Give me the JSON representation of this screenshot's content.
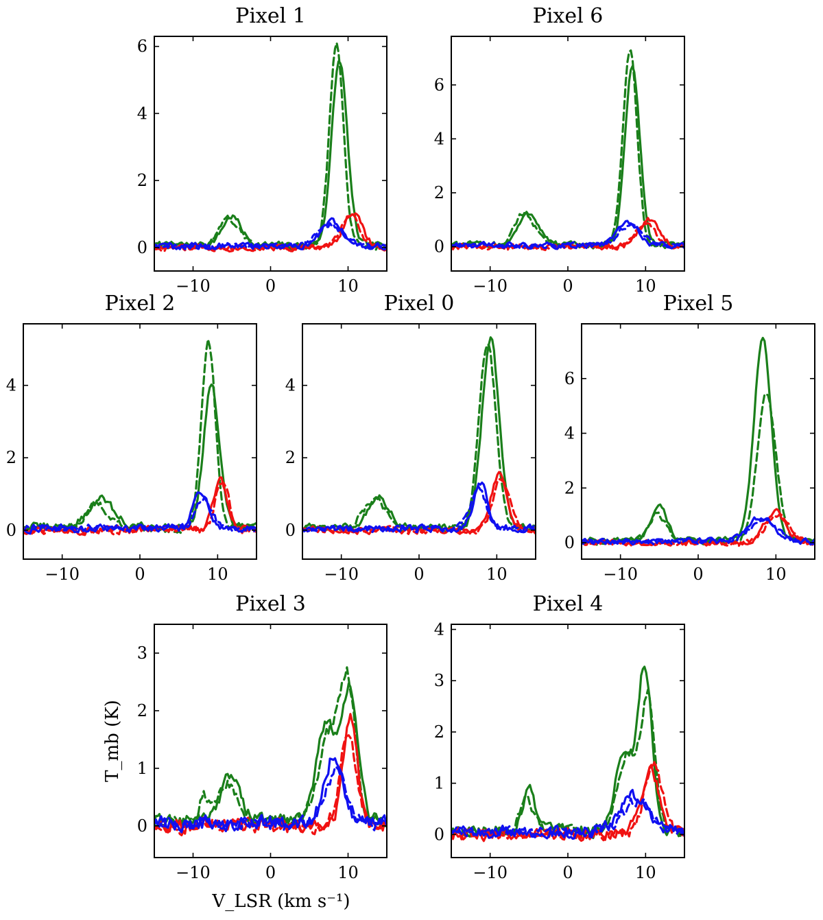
{
  "figure": {
    "xlabel": "V_LSR (km s⁻¹)",
    "ylabel": "T_mb (K)"
  },
  "colors": {
    "green": "#1a7f1a",
    "red": "#f01212",
    "blue": "#1010f0"
  },
  "chart_data": [
    {
      "type": "line",
      "title": "Pixel 1",
      "xlim": [
        -15,
        15
      ],
      "ylim": [
        -0.7,
        6.3
      ],
      "xticks": [
        -10,
        0,
        10
      ],
      "yticks": [
        0,
        2,
        4,
        6
      ],
      "series": [
        {
          "name": "green solid",
          "color": "green",
          "style": "solid",
          "base": 0.08,
          "peaks": [
            [
              -5.0,
              0.85,
              1.2
            ],
            [
              8.9,
              5.5,
              1.0
            ]
          ],
          "noise": 0.09
        },
        {
          "name": "green dashed",
          "color": "green",
          "style": "dashed",
          "base": 0.05,
          "peaks": [
            [
              -5.3,
              0.8,
              1.3
            ],
            [
              8.5,
              6.0,
              0.9
            ]
          ],
          "noise": 0.09
        },
        {
          "name": "red solid",
          "color": "red",
          "style": "solid",
          "base": 0.0,
          "peaks": [
            [
              10.6,
              1.05,
              1.2
            ]
          ],
          "noise": 0.09
        },
        {
          "name": "red dashed",
          "color": "red",
          "style": "dashed",
          "base": 0.0,
          "peaks": [
            [
              10.3,
              0.95,
              1.2
            ]
          ],
          "noise": 0.09
        },
        {
          "name": "blue solid",
          "color": "blue",
          "style": "solid",
          "base": 0.05,
          "peaks": [
            [
              8.0,
              0.72,
              1.4
            ]
          ],
          "noise": 0.09
        },
        {
          "name": "blue dashed",
          "color": "blue",
          "style": "dashed",
          "base": 0.05,
          "peaks": [
            [
              7.6,
              0.65,
              1.5
            ]
          ],
          "noise": 0.09
        }
      ]
    },
    {
      "type": "line",
      "title": "Pixel 6",
      "xlim": [
        -15,
        15
      ],
      "ylim": [
        -0.9,
        7.8
      ],
      "xticks": [
        -10,
        0,
        10
      ],
      "yticks": [
        0,
        2,
        4,
        6
      ],
      "series": [
        {
          "name": "green solid",
          "color": "green",
          "style": "solid",
          "base": 0.08,
          "peaks": [
            [
              -5.0,
              1.15,
              1.3
            ],
            [
              8.3,
              6.6,
              0.95
            ]
          ],
          "noise": 0.1
        },
        {
          "name": "green dashed",
          "color": "green",
          "style": "dashed",
          "base": 0.05,
          "peaks": [
            [
              -5.6,
              1.2,
              1.3
            ],
            [
              8.0,
              7.3,
              0.9
            ]
          ],
          "noise": 0.1
        },
        {
          "name": "red solid",
          "color": "red",
          "style": "solid",
          "base": 0.0,
          "peaks": [
            [
              10.4,
              1.0,
              1.3
            ]
          ],
          "noise": 0.1
        },
        {
          "name": "red dashed",
          "color": "red",
          "style": "dashed",
          "base": 0.0,
          "peaks": [
            [
              10.0,
              0.9,
              1.3
            ]
          ],
          "noise": 0.1
        },
        {
          "name": "blue solid",
          "color": "blue",
          "style": "solid",
          "base": 0.05,
          "peaks": [
            [
              7.7,
              0.9,
              1.3
            ]
          ],
          "noise": 0.1
        },
        {
          "name": "blue dashed",
          "color": "blue",
          "style": "dashed",
          "base": 0.05,
          "peaks": [
            [
              8.1,
              0.8,
              1.5
            ]
          ],
          "noise": 0.1
        }
      ]
    },
    {
      "type": "line",
      "title": "Pixel 2",
      "xlim": [
        -15,
        15
      ],
      "ylim": [
        -0.8,
        5.7
      ],
      "xticks": [
        -10,
        0,
        10
      ],
      "yticks": [
        0,
        2,
        4
      ],
      "series": [
        {
          "name": "green solid",
          "color": "green",
          "style": "solid",
          "base": 0.1,
          "peaks": [
            [
              -5.0,
              0.75,
              1.6
            ],
            [
              9.2,
              3.9,
              1.0
            ]
          ],
          "noise": 0.1
        },
        {
          "name": "green dashed",
          "color": "green",
          "style": "dashed",
          "base": 0.05,
          "peaks": [
            [
              -5.5,
              0.65,
              1.5
            ],
            [
              8.8,
              5.2,
              0.9
            ]
          ],
          "noise": 0.1
        },
        {
          "name": "red solid",
          "color": "red",
          "style": "solid",
          "base": 0.0,
          "peaks": [
            [
              10.3,
              1.4,
              0.9
            ]
          ],
          "noise": 0.1
        },
        {
          "name": "red dashed",
          "color": "red",
          "style": "dashed",
          "base": 0.0,
          "peaks": [
            [
              10.6,
              1.3,
              0.9
            ]
          ],
          "noise": 0.1
        },
        {
          "name": "blue solid",
          "color": "blue",
          "style": "solid",
          "base": 0.05,
          "peaks": [
            [
              7.8,
              1.05,
              0.9
            ]
          ],
          "noise": 0.1
        },
        {
          "name": "blue dashed",
          "color": "blue",
          "style": "dashed",
          "base": 0.05,
          "peaks": [
            [
              8.2,
              0.85,
              1.0
            ]
          ],
          "noise": 0.1
        }
      ]
    },
    {
      "type": "line",
      "title": "Pixel 0",
      "xlim": [
        -15,
        15
      ],
      "ylim": [
        -0.8,
        5.7
      ],
      "xticks": [
        -10,
        0,
        10
      ],
      "yticks": [
        0,
        2,
        4
      ],
      "series": [
        {
          "name": "green solid",
          "color": "green",
          "style": "solid",
          "base": 0.08,
          "peaks": [
            [
              -5.2,
              0.85,
              1.3
            ],
            [
              9.2,
              5.2,
              1.1
            ]
          ],
          "noise": 0.09
        },
        {
          "name": "green dashed",
          "color": "green",
          "style": "dashed",
          "base": 0.05,
          "peaks": [
            [
              -5.8,
              0.8,
              1.4
            ],
            [
              8.8,
              5.1,
              1.1
            ]
          ],
          "noise": 0.09
        },
        {
          "name": "red solid",
          "color": "red",
          "style": "solid",
          "base": 0.0,
          "peaks": [
            [
              10.3,
              1.55,
              1.0
            ]
          ],
          "noise": 0.09
        },
        {
          "name": "red dashed",
          "color": "red",
          "style": "dashed",
          "base": 0.0,
          "peaks": [
            [
              10.6,
              1.45,
              1.0
            ]
          ],
          "noise": 0.09
        },
        {
          "name": "blue solid",
          "color": "blue",
          "style": "solid",
          "base": 0.05,
          "peaks": [
            [
              7.9,
              1.25,
              0.9
            ]
          ],
          "noise": 0.09
        },
        {
          "name": "blue dashed",
          "color": "blue",
          "style": "dashed",
          "base": 0.05,
          "peaks": [
            [
              7.6,
              1.1,
              1.0
            ]
          ],
          "noise": 0.09
        }
      ]
    },
    {
      "type": "line",
      "title": "Pixel 5",
      "xlim": [
        -15,
        15
      ],
      "ylim": [
        -0.6,
        8.0
      ],
      "xticks": [
        -10,
        0,
        10
      ],
      "yticks": [
        0,
        2,
        4,
        6
      ],
      "series": [
        {
          "name": "green solid",
          "color": "green",
          "style": "solid",
          "base": 0.1,
          "peaks": [
            [
              -5.0,
              1.2,
              1.0
            ],
            [
              8.3,
              7.4,
              1.1
            ]
          ],
          "noise": 0.1
        },
        {
          "name": "green dashed",
          "color": "green",
          "style": "dashed",
          "base": 0.05,
          "peaks": [
            [
              -5.3,
              1.0,
              1.1
            ],
            [
              8.8,
              5.4,
              1.2
            ]
          ],
          "noise": 0.1
        },
        {
          "name": "red solid",
          "color": "red",
          "style": "solid",
          "base": 0.0,
          "peaks": [
            [
              9.9,
              1.15,
              1.4
            ]
          ],
          "noise": 0.1
        },
        {
          "name": "red dashed",
          "color": "red",
          "style": "dashed",
          "base": 0.0,
          "peaks": [
            [
              10.2,
              1.05,
              1.4
            ]
          ],
          "noise": 0.1
        },
        {
          "name": "blue solid",
          "color": "blue",
          "style": "solid",
          "base": 0.05,
          "peaks": [
            [
              8.0,
              0.85,
              1.8
            ]
          ],
          "noise": 0.1
        },
        {
          "name": "blue dashed",
          "color": "blue",
          "style": "dashed",
          "base": 0.05,
          "peaks": [
            [
              8.4,
              0.75,
              1.8
            ]
          ],
          "noise": 0.1
        }
      ]
    },
    {
      "type": "line",
      "title": "Pixel 3",
      "xlim": [
        -15,
        15
      ],
      "ylim": [
        -0.55,
        3.5
      ],
      "xticks": [
        -10,
        0,
        10
      ],
      "yticks": [
        0,
        1,
        2,
        3
      ],
      "series": [
        {
          "name": "green solid",
          "color": "green",
          "style": "solid",
          "base": 0.1,
          "peaks": [
            [
              -5.2,
              0.75,
              1.3
            ],
            [
              7.2,
              1.7,
              1.3
            ],
            [
              10.3,
              2.2,
              1.0
            ]
          ],
          "noise": 0.11
        },
        {
          "name": "green dashed",
          "color": "green",
          "style": "dashed",
          "base": 0.05,
          "peaks": [
            [
              -5.6,
              0.7,
              1.4
            ],
            [
              -8.6,
              0.4,
              0.5
            ],
            [
              7.5,
              1.5,
              1.4
            ],
            [
              10.0,
              2.3,
              1.0
            ]
          ],
          "noise": 0.11
        },
        {
          "name": "red solid",
          "color": "red",
          "style": "solid",
          "base": 0.0,
          "peaks": [
            [
              10.3,
              1.95,
              0.9
            ]
          ],
          "noise": 0.12
        },
        {
          "name": "red dashed",
          "color": "red",
          "style": "dashed",
          "base": 0.0,
          "peaks": [
            [
              10.0,
              1.7,
              1.0
            ]
          ],
          "noise": 0.12
        },
        {
          "name": "blue solid",
          "color": "blue",
          "style": "solid",
          "base": 0.05,
          "peaks": [
            [
              8.1,
              1.15,
              1.2
            ]
          ],
          "noise": 0.12
        },
        {
          "name": "blue dashed",
          "color": "blue",
          "style": "dashed",
          "base": 0.05,
          "peaks": [
            [
              8.5,
              0.95,
              1.3
            ]
          ],
          "noise": 0.12
        }
      ]
    },
    {
      "type": "line",
      "title": "Pixel 4",
      "xlim": [
        -15,
        15
      ],
      "ylim": [
        -0.45,
        4.1
      ],
      "xticks": [
        -10,
        0,
        10
      ],
      "yticks": [
        0,
        1,
        2,
        3,
        4
      ],
      "series": [
        {
          "name": "green solid",
          "color": "green",
          "style": "solid",
          "base": 0.08,
          "peaks": [
            [
              -5.0,
              0.8,
              0.8
            ],
            [
              7.2,
              1.5,
              1.1
            ],
            [
              9.9,
              3.2,
              0.9
            ]
          ],
          "noise": 0.1
        },
        {
          "name": "green dashed",
          "color": "green",
          "style": "dashed",
          "base": 0.05,
          "peaks": [
            [
              -5.3,
              0.65,
              0.9
            ],
            [
              7.6,
              1.5,
              1.2
            ],
            [
              10.3,
              2.6,
              0.9
            ]
          ],
          "noise": 0.1
        },
        {
          "name": "red solid",
          "color": "red",
          "style": "solid",
          "base": 0.0,
          "peaks": [
            [
              10.6,
              1.25,
              1.2
            ]
          ],
          "noise": 0.11
        },
        {
          "name": "red dashed",
          "color": "red",
          "style": "dashed",
          "base": 0.0,
          "peaks": [
            [
              11.0,
              1.4,
              1.1
            ]
          ],
          "noise": 0.11
        },
        {
          "name": "blue solid",
          "color": "blue",
          "style": "solid",
          "base": 0.05,
          "peaks": [
            [
              8.4,
              0.7,
              1.8
            ]
          ],
          "noise": 0.11
        },
        {
          "name": "blue dashed",
          "color": "blue",
          "style": "dashed",
          "base": 0.05,
          "peaks": [
            [
              8.9,
              0.6,
              1.8
            ]
          ],
          "noise": 0.11
        }
      ]
    }
  ]
}
